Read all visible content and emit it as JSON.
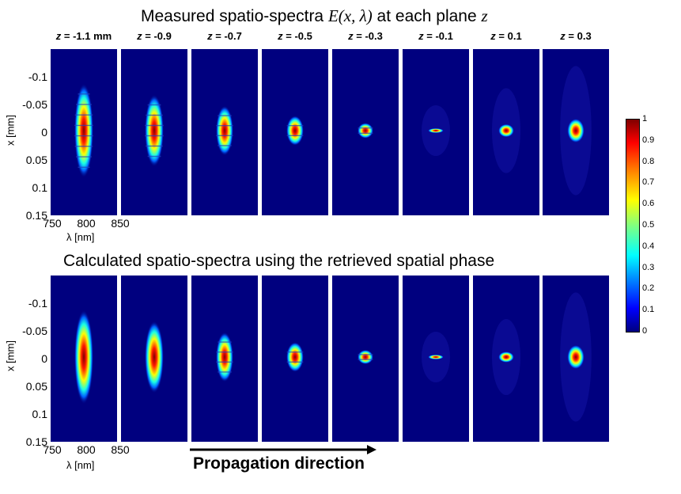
{
  "titles": {
    "top_main": "Measured spatio-spectra",
    "top_E": "E(x, λ)",
    "top_at": "at each plane",
    "top_z": "z",
    "bottom": "Calculated spatio-spectra using the retrieved spatial phase"
  },
  "z_labels": [
    {
      "var": "z",
      "text": " = -1.1 mm"
    },
    {
      "var": "z",
      "text": " = -0.9"
    },
    {
      "var": "z",
      "text": " = -0.7"
    },
    {
      "var": "z",
      "text": " = -0.5"
    },
    {
      "var": "z",
      "text": " = -0.3"
    },
    {
      "var": "z",
      "text": " = -0.1"
    },
    {
      "var": "z",
      "text": " = 0.1"
    },
    {
      "var": "z",
      "text": " = 0.3"
    }
  ],
  "axes": {
    "y_label": "x [mm]",
    "x_label": "λ [nm]",
    "y_ticks": [
      "-0.1",
      "-0.05",
      "0",
      "0.05",
      "0.1",
      "0.15"
    ],
    "x_ticks": [
      "750",
      "800",
      "850"
    ]
  },
  "colorbar": {
    "ticks": [
      "1",
      "0.9",
      "0.8",
      "0.7",
      "0.6",
      "0.5",
      "0.4",
      "0.3",
      "0.2",
      "0.1",
      "0"
    ],
    "colormap": "jet",
    "range": [
      0,
      1
    ]
  },
  "annotation": {
    "propagation": "Propagation direction"
  },
  "chart_data": {
    "type": "heatmap",
    "colormap": "jet",
    "value_range": [
      0,
      1
    ],
    "ylim_mm": [
      -0.15,
      0.15
    ],
    "xlim_nm": [
      750,
      850
    ],
    "rows": [
      {
        "title": "Measured spatio-spectra E(x, λ) at each plane z",
        "panels": [
          {
            "z": "-1.1 mm",
            "half_width_x_mm": 0.085,
            "fringes": true
          },
          {
            "z": "-0.9",
            "half_width_x_mm": 0.065,
            "fringes": true
          },
          {
            "z": "-0.7",
            "half_width_x_mm": 0.045,
            "fringes": true
          },
          {
            "z": "-0.5",
            "half_width_x_mm": 0.027,
            "fringes": true
          },
          {
            "z": "-0.3",
            "half_width_x_mm": 0.014,
            "fringes": true
          },
          {
            "z": "-0.1",
            "half_width_x_mm": 0.004,
            "fringes": false
          },
          {
            "z": "0.1",
            "half_width_x_mm": 0.012,
            "fringes": false
          },
          {
            "z": "0.3",
            "half_width_x_mm": 0.022,
            "fringes": false
          }
        ]
      },
      {
        "title": "Calculated spatio-spectra using the retrieved spatial phase",
        "panels": [
          {
            "z": "-1.1 mm",
            "half_width_x_mm": 0.085,
            "fringes": false
          },
          {
            "z": "-0.9",
            "half_width_x_mm": 0.065,
            "fringes": false
          },
          {
            "z": "-0.7",
            "half_width_x_mm": 0.045,
            "fringes": true
          },
          {
            "z": "-0.5",
            "half_width_x_mm": 0.027,
            "fringes": true
          },
          {
            "z": "-0.3",
            "half_width_x_mm": 0.013,
            "fringes": true
          },
          {
            "z": "-0.1",
            "half_width_x_mm": 0.003,
            "fringes": false
          },
          {
            "z": "0.1",
            "half_width_x_mm": 0.01,
            "fringes": false
          },
          {
            "z": "0.3",
            "half_width_x_mm": 0.022,
            "fringes": false
          }
        ]
      }
    ]
  }
}
